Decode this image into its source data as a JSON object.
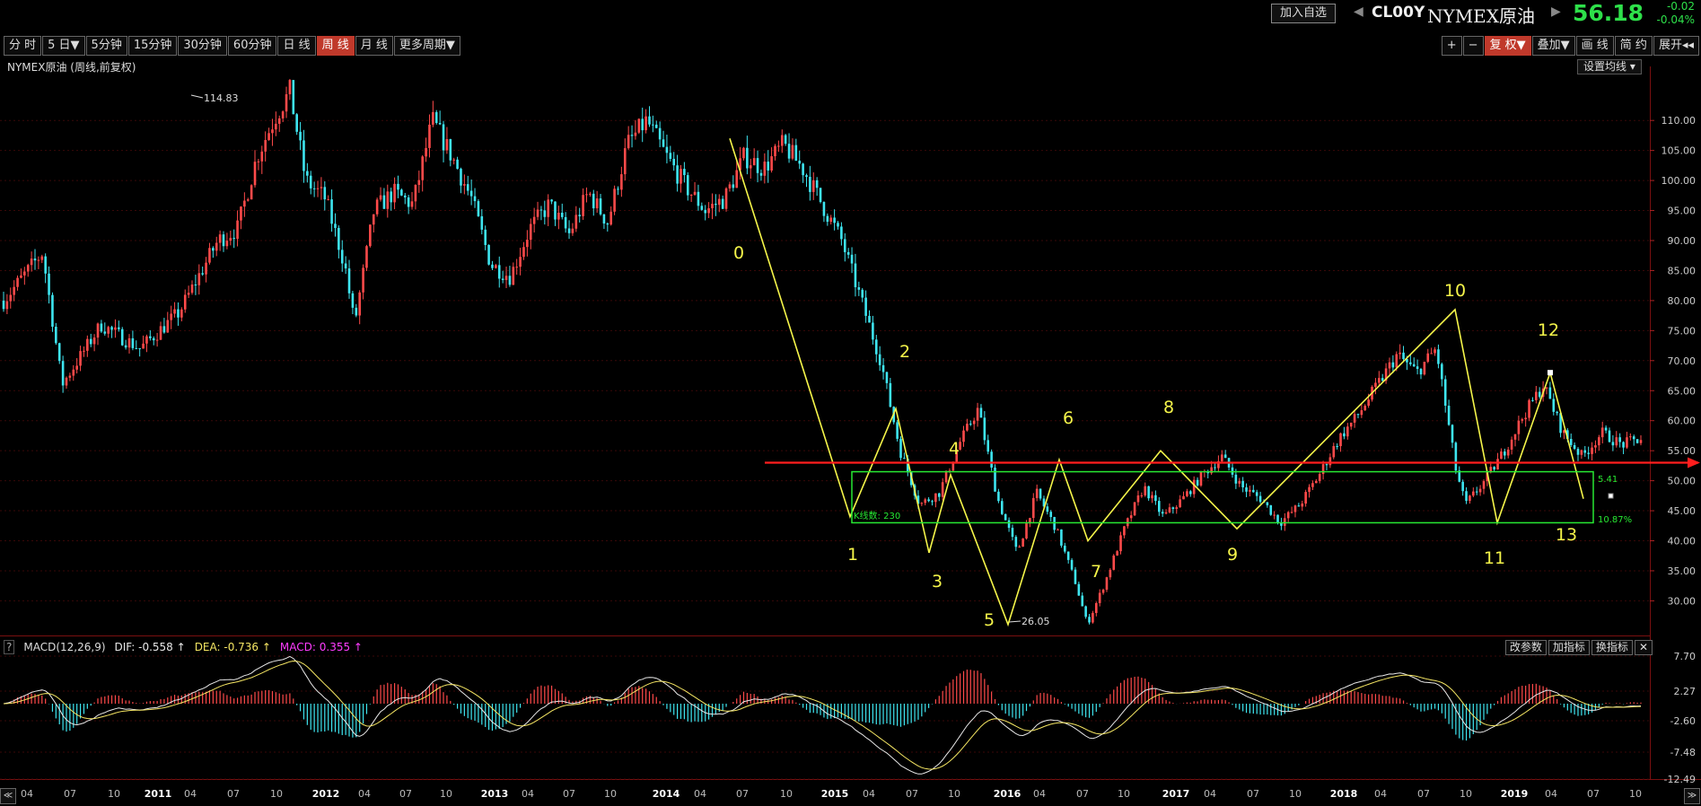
{
  "header": {
    "add_fav": "加入自选",
    "code": "CL00Y",
    "name": "NYMEX原油",
    "price": "56.18",
    "change": "-0.02",
    "change_pct": "-0.04%"
  },
  "periods": [
    "分 时",
    "5 日▼",
    "5分钟",
    "15分钟",
    "30分钟",
    "60分钟",
    "日 线",
    "周 线",
    "月 线",
    "更多周期▼"
  ],
  "active_period": "周 线",
  "tools": [
    "+",
    "−",
    "复 权▼",
    "叠加▼",
    "画 线",
    "简 约",
    "展开◂◂"
  ],
  "active_tool": "复 权▼",
  "chart_title": "NYMEX原油 (周线,前复权)",
  "set_ma": "设置均线 ▾",
  "macd": {
    "label": "MACD(12,26,9)",
    "dif": "DIF: -0.558 ↑",
    "dea": "DEA: -0.736 ↑",
    "macd": "MACD: 0.355 ↑",
    "tools": [
      "改参数",
      "加指标",
      "换指标",
      "✕"
    ]
  },
  "colors": {
    "up": "#ff4a4a",
    "down": "#3ee5f0",
    "yellow": "#f5f54a",
    "green": "#27e832",
    "red_line": "#ff1e1e",
    "dif": "#e8e8e8",
    "dea": "#f5e663",
    "macd_label": "#ff3cff"
  },
  "chart_data": {
    "type": "candlestick",
    "price_axis": [
      "110.00",
      "105.00",
      "100.00",
      "95.00",
      "90.00",
      "85.00",
      "80.00",
      "75.00",
      "70.00",
      "65.00",
      "60.00",
      "55.00",
      "50.00",
      "45.00",
      "40.00",
      "35.00",
      "30.00"
    ],
    "macd_axis": [
      "7.70",
      "2.27",
      "-2.60",
      "-7.48",
      "-12.49"
    ],
    "x_axis": [
      {
        "label": "04",
        "year": false
      },
      {
        "label": "07",
        "year": false
      },
      {
        "label": "10",
        "year": false
      },
      {
        "label": "2011",
        "year": true
      },
      {
        "label": "04",
        "year": false
      },
      {
        "label": "07",
        "year": false
      },
      {
        "label": "10",
        "year": false
      },
      {
        "label": "2012",
        "year": true
      },
      {
        "label": "04",
        "year": false
      },
      {
        "label": "07",
        "year": false
      },
      {
        "label": "10",
        "year": false
      },
      {
        "label": "2013",
        "year": true
      },
      {
        "label": "04",
        "year": false
      },
      {
        "label": "07",
        "year": false
      },
      {
        "label": "10",
        "year": false
      },
      {
        "label": "2014",
        "year": true
      },
      {
        "label": "04",
        "year": false
      },
      {
        "label": "07",
        "year": false
      },
      {
        "label": "10",
        "year": false
      },
      {
        "label": "2015",
        "year": true
      },
      {
        "label": "04",
        "year": false
      },
      {
        "label": "07",
        "year": false
      },
      {
        "label": "10",
        "year": false
      },
      {
        "label": "2016",
        "year": true
      },
      {
        "label": "04",
        "year": false
      },
      {
        "label": "07",
        "year": false
      },
      {
        "label": "10",
        "year": false
      },
      {
        "label": "2017",
        "year": true
      },
      {
        "label": "04",
        "year": false
      },
      {
        "label": "07",
        "year": false
      },
      {
        "label": "10",
        "year": false
      },
      {
        "label": "2018",
        "year": true
      },
      {
        "label": "04",
        "year": false
      },
      {
        "label": "07",
        "year": false
      },
      {
        "label": "10",
        "year": false
      },
      {
        "label": "2019",
        "year": true
      },
      {
        "label": "04",
        "year": false
      },
      {
        "label": "07",
        "year": false
      },
      {
        "label": "10",
        "year": false
      }
    ],
    "price_series": [
      [
        0,
        80
      ],
      [
        2,
        88
      ],
      [
        3,
        66
      ],
      [
        5,
        76
      ],
      [
        7,
        72
      ],
      [
        9,
        78
      ],
      [
        11,
        90
      ],
      [
        12,
        92
      ],
      [
        13,
        104
      ],
      [
        14,
        111
      ],
      [
        14.7,
        114.83
      ],
      [
        15.5,
        100
      ],
      [
        16.5,
        97
      ],
      [
        17.5,
        86
      ],
      [
        18,
        76
      ],
      [
        19,
        95
      ],
      [
        20,
        98
      ],
      [
        21,
        96
      ],
      [
        22,
        110
      ],
      [
        23,
        104
      ],
      [
        24,
        97
      ],
      [
        25,
        86
      ],
      [
        26,
        84
      ],
      [
        27,
        92
      ],
      [
        28,
        96
      ],
      [
        29,
        91
      ],
      [
        30,
        98
      ],
      [
        31,
        93
      ],
      [
        32,
        106
      ],
      [
        33,
        110
      ],
      [
        34,
        104
      ],
      [
        35,
        99
      ],
      [
        36,
        95
      ],
      [
        37,
        97
      ],
      [
        38,
        104
      ],
      [
        39,
        102
      ],
      [
        40,
        106
      ],
      [
        41,
        102
      ],
      [
        42,
        96
      ],
      [
        43,
        90
      ],
      [
        44,
        80
      ],
      [
        45,
        70
      ],
      [
        46,
        55
      ],
      [
        47,
        46
      ],
      [
        48,
        48
      ],
      [
        49,
        56
      ],
      [
        50,
        62
      ],
      [
        51,
        47
      ],
      [
        52,
        38
      ],
      [
        53,
        48
      ],
      [
        54,
        42
      ],
      [
        55,
        33
      ],
      [
        55.6,
        26.05
      ],
      [
        56.5,
        33
      ],
      [
        57.5,
        42
      ],
      [
        58.5,
        49
      ],
      [
        59.5,
        44
      ],
      [
        60.5,
        47
      ],
      [
        61.5,
        51
      ],
      [
        62.5,
        54
      ],
      [
        63.5,
        49
      ],
      [
        64.5,
        47
      ],
      [
        65.5,
        43
      ],
      [
        66.5,
        46
      ],
      [
        67.5,
        51
      ],
      [
        68.5,
        57
      ],
      [
        69.5,
        61
      ],
      [
        70.5,
        66
      ],
      [
        71.5,
        71
      ],
      [
        72.5,
        68
      ],
      [
        73.5,
        72
      ],
      [
        74.5,
        52
      ],
      [
        75,
        46
      ],
      [
        76,
        50
      ],
      [
        77,
        55
      ],
      [
        78,
        61
      ],
      [
        79,
        66
      ],
      [
        80,
        58
      ],
      [
        81,
        54
      ],
      [
        82,
        58
      ],
      [
        83,
        56
      ],
      [
        84,
        57
      ]
    ],
    "zigzag_points": [
      {
        "label": "0",
        "x": "2014-06",
        "y": 107
      },
      {
        "label": "1",
        "x": "2015-03",
        "y": 44
      },
      {
        "label": "2",
        "x": "2015-06",
        "y": 62
      },
      {
        "label": "3",
        "x": "2015-08",
        "y": 38
      },
      {
        "label": "4",
        "x": "2015-10",
        "y": 51
      },
      {
        "label": "5",
        "x": "2016-02",
        "y": 26.05
      },
      {
        "label": "6",
        "x": "2016-06",
        "y": 53.5
      },
      {
        "label": "7",
        "x": "2016-08",
        "y": 40
      },
      {
        "label": "8",
        "x": "2016-12",
        "y": 55
      },
      {
        "label": "9",
        "x": "2017-06",
        "y": 42
      },
      {
        "label": "10",
        "x": "2018-10",
        "y": 78.5
      },
      {
        "label": "11",
        "x": "2018-12",
        "y": 43
      },
      {
        "label": "12",
        "x": "2019-04",
        "y": 68
      },
      {
        "label": "13",
        "x": "2019-06",
        "y": 47
      }
    ],
    "annotations": {
      "high": "114.83",
      "low": "26.05",
      "box_count": "K线数: 230",
      "box_high_label": "5.41",
      "box_pct": "10.87%"
    },
    "resistance_level": 53,
    "box": {
      "top": 51.5,
      "bottom": 43
    }
  }
}
